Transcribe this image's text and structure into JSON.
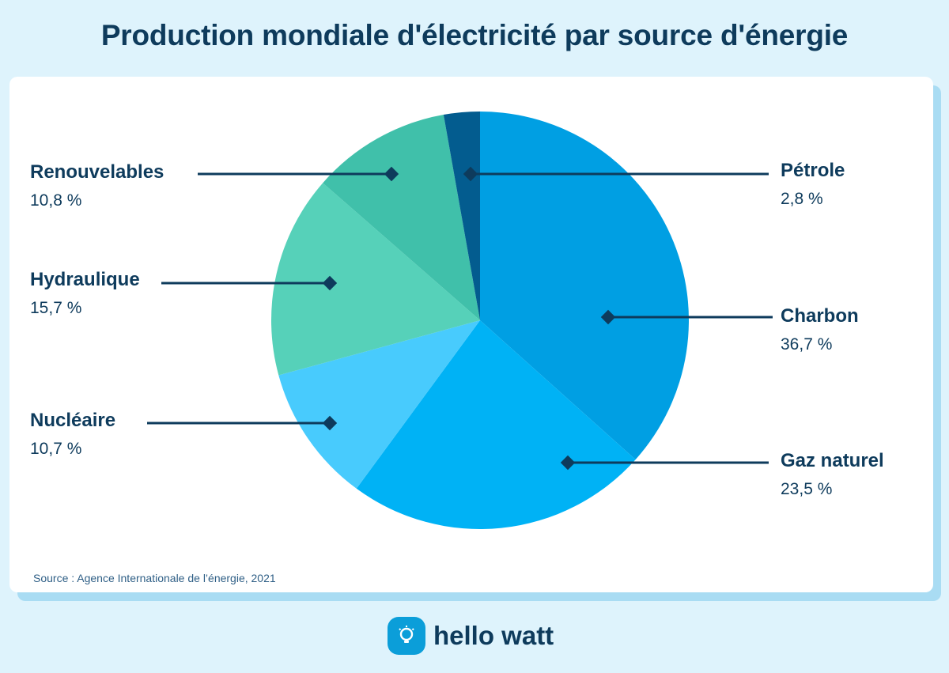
{
  "title": "Production mondiale d'électricité par source d'énergie",
  "source": "Source : Agence Internationale de l’énergie, 2021",
  "brand": {
    "name": "hello watt",
    "icon": "lightbulb-icon"
  },
  "chart_data": {
    "type": "pie",
    "title": "Production mondiale d'électricité par source d'énergie",
    "slices": [
      {
        "label": "Charbon",
        "value": 36.7,
        "display": "36,7 %",
        "color": "#009fe3"
      },
      {
        "label": "Gaz naturel",
        "value": 23.5,
        "display": "23,5 %",
        "color": "#00b2f5"
      },
      {
        "label": "Nucléaire",
        "value": 10.7,
        "display": "10,7 %",
        "color": "#48cbfd"
      },
      {
        "label": "Hydraulique",
        "value": 15.7,
        "display": "15,7 %",
        "color": "#56d1b9"
      },
      {
        "label": "Renouvelables",
        "value": 10.8,
        "display": "10,8 %",
        "color": "#40c0aa"
      },
      {
        "label": "Pétrole",
        "value": 2.8,
        "display": "2,8 %",
        "color": "#035c8f"
      }
    ],
    "start": "12 o'clock",
    "direction": "clockwise",
    "legend": "callout labels on left and right",
    "leader_color": "#0e3b5c"
  }
}
